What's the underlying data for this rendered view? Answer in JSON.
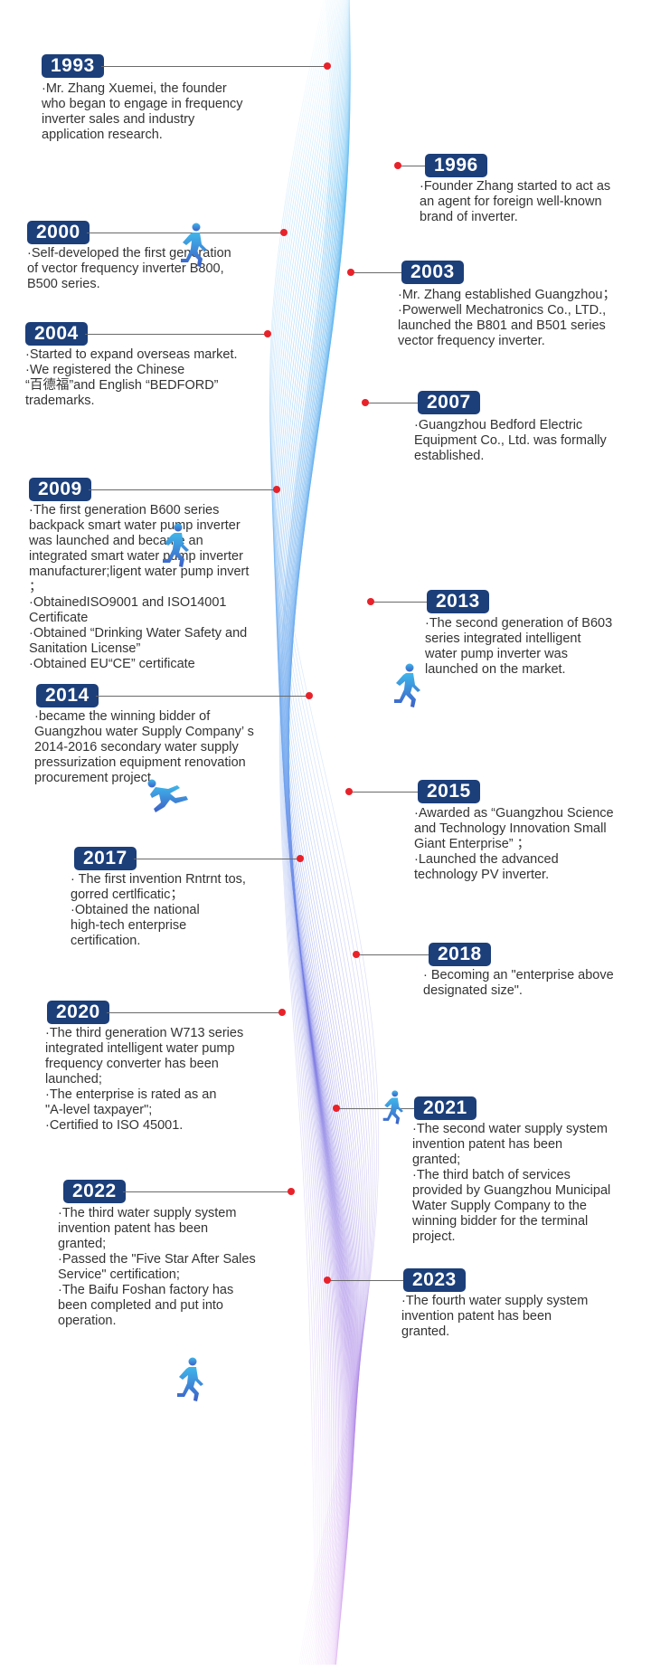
{
  "colors": {
    "badge_bg": "#1c3f7a",
    "badge_text": "#ffffff",
    "dot": "#e8222a",
    "connector": "#6a6a6a",
    "text": "#333333",
    "ribbon_top": "#5bb8f0",
    "ribbon_mid": "#6f74e0",
    "ribbon_bottom": "#c889e6"
  },
  "icons": [
    "running-person-icon"
  ],
  "events": [
    {
      "year": "1993",
      "lines": [
        "·Mr. Zhang Xuemei, the founder",
        "who began to engage in frequency",
        "inverter sales and industry",
        "application research."
      ]
    },
    {
      "year": "1996",
      "lines": [
        "·Founder Zhang started to act as",
        "an agent for foreign well-known",
        "brand of inverter."
      ]
    },
    {
      "year": "2000",
      "lines": [
        "·Self-developed the first generation",
        "of vector frequency inverter B800,",
        "B500 series."
      ]
    },
    {
      "year": "2003",
      "lines": [
        "·Mr. Zhang established Guangzhou；",
        "·Powerwell Mechatronics Co., LTD.,",
        "launched the B801 and B501 series",
        "vector frequency inverter."
      ]
    },
    {
      "year": "2004",
      "lines": [
        "·Started to expand overseas market.",
        "·We registered the Chinese",
        "“百德福”and English “BEDFORD”",
        "trademarks."
      ]
    },
    {
      "year": "2007",
      "lines": [
        "·Guangzhou Bedford Electric",
        "Equipment Co., Ltd. was formally",
        "established."
      ]
    },
    {
      "year": "2009",
      "lines": [
        "·The first generation B600 series",
        "backpack smart water pump inverter",
        "was launched and became an",
        "integrated smart water pump inverter",
        "manufacturer;ligent water pump invert",
        "；",
        "·ObtainedISO9001 and ISO14001",
        "Certificate",
        "·Obtained “Drinking Water Safety and",
        "Sanitation License”",
        "·Obtained EU“CE” certificate"
      ]
    },
    {
      "year": "2013",
      "lines": [
        "·The second generation of B603",
        "series integrated intelligent",
        "water pump inverter was",
        "launched on the market."
      ]
    },
    {
      "year": "2014",
      "lines": [
        "·became the winning bidder of",
        "Guangzhou water Supply Company’ s",
        "2014-2016 secondary water supply",
        "pressurization equipment renovation",
        "procurement project."
      ]
    },
    {
      "year": "2015",
      "lines": [
        "·Awarded as “Guangzhou Science",
        "and Technology Innovation Small",
        "Giant Enterprise” ；",
        "·Launched the advanced",
        "technology PV inverter."
      ]
    },
    {
      "year": "2017",
      "lines": [
        "· The first invention Rntrnt tos,",
        "gorred certlficatic；",
        "·Obtained the national",
        "high-tech enterprise",
        "certification."
      ]
    },
    {
      "year": "2018",
      "lines": [
        "· Becoming an \"enterprise above",
        "designated size\"."
      ]
    },
    {
      "year": "2020",
      "lines": [
        "·The third generation W713 series",
        "integrated intelligent water pump",
        "frequency converter has been",
        "launched;",
        "·The enterprise is rated as an",
        "\"A-level taxpayer\";",
        "·Certified to ISO 45001."
      ]
    },
    {
      "year": "2021",
      "lines": [
        "·The second water supply system",
        "invention patent has been",
        "granted;",
        "·The third batch of services",
        "provided by Guangzhou Municipal",
        "Water Supply Company to the",
        "winning bidder for the terminal",
        "project."
      ]
    },
    {
      "year": "2022",
      "lines": [
        "·The third water supply system",
        "invention patent has been",
        "granted;",
        "·Passed the \"Five Star After Sales",
        "Service\" certification;",
        "·The Baifu Foshan factory has",
        "been completed and put into",
        "operation."
      ]
    },
    {
      "year": "2023",
      "lines": [
        "·The fourth water supply system",
        "invention patent has been",
        "granted."
      ]
    }
  ]
}
